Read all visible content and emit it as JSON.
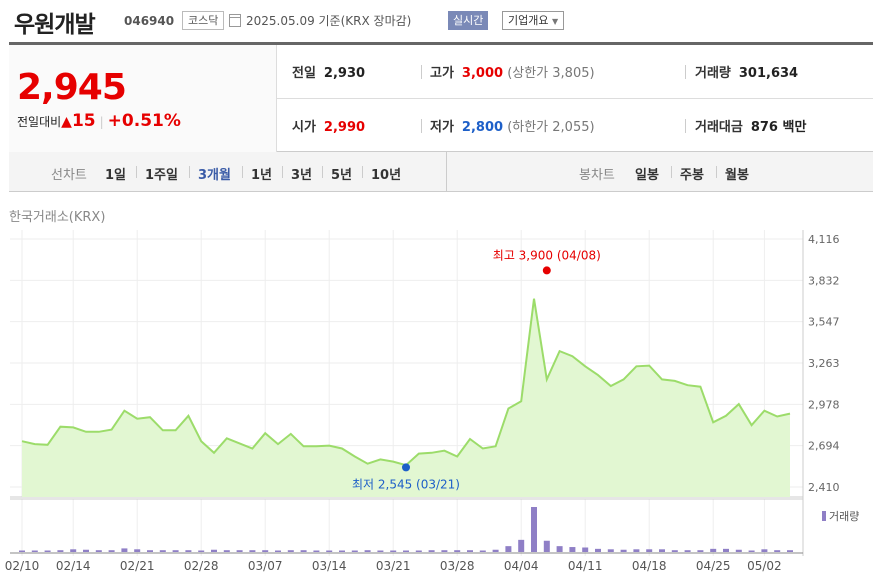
{
  "header": {
    "name": "우원개발",
    "code": "046940",
    "market": "코스닥",
    "date_text": "2025.05.09 기준(KRX 장마감)",
    "realtime": "실시간",
    "company_info": "기업개요"
  },
  "price": {
    "current": "2,945",
    "change_label": "전일대비",
    "change_amount": "15",
    "change_percent": "+0.51%"
  },
  "stats": {
    "prev_close": {
      "label": "전일",
      "value": "2,930"
    },
    "high": {
      "label": "고가",
      "value": "3,000",
      "limit": "(상한가 3,805)"
    },
    "volume": {
      "label": "거래량",
      "value": "301,634"
    },
    "open": {
      "label": "시가",
      "value": "2,990"
    },
    "low": {
      "label": "저가",
      "value": "2,800",
      "limit": "(하한가 2,055)"
    },
    "amount": {
      "label": "거래대금",
      "value": "876 백만"
    }
  },
  "tabs": {
    "line_label": "선차트",
    "periods": [
      "1일",
      "1주일",
      "3개월",
      "1년",
      "3년",
      "5년",
      "10년"
    ],
    "active": "3개월",
    "candle_label": "봉차트",
    "candles": [
      "일봉",
      "주봉",
      "월봉"
    ]
  },
  "exchange_label": "한국거래소(KRX)",
  "colors": {
    "up": "#e60000",
    "down": "#1d5fc8",
    "line": "#9cdc6a",
    "fill": "#e2f7d2",
    "volume": "#8f7fc6"
  },
  "chart_data": {
    "type": "area",
    "y_ticks": [
      "4,116",
      "3,832",
      "3,547",
      "3,263",
      "2,978",
      "2,694",
      "2,410"
    ],
    "ylim": [
      2410,
      4116
    ],
    "x_ticks": [
      "02/10",
      "02/14",
      "02/21",
      "02/28",
      "03/07",
      "03/14",
      "03/21",
      "03/28",
      "04/04",
      "04/11",
      "04/18",
      "04/25",
      "05/02"
    ],
    "x_tick_index": [
      0,
      4,
      9,
      14,
      19,
      24,
      29,
      34,
      39,
      44,
      49,
      54,
      58
    ],
    "prices": [
      2725,
      2705,
      2700,
      2825,
      2820,
      2790,
      2790,
      2805,
      2935,
      2880,
      2890,
      2800,
      2800,
      2900,
      2725,
      2645,
      2745,
      2710,
      2675,
      2780,
      2705,
      2775,
      2690,
      2690,
      2695,
      2675,
      2620,
      2570,
      2600,
      2585,
      2560,
      2640,
      2645,
      2660,
      2620,
      2740,
      2675,
      2690,
      2950,
      3000,
      3705,
      3150,
      3345,
      3310,
      3240,
      3180,
      3105,
      3150,
      3240,
      3245,
      3150,
      3140,
      3110,
      3100,
      2855,
      2900,
      2980,
      2835,
      2935,
      2895,
      2915
    ],
    "volume_relative": [
      0.03,
      0.03,
      0.03,
      0.04,
      0.06,
      0.05,
      0.04,
      0.04,
      0.08,
      0.06,
      0.04,
      0.04,
      0.04,
      0.04,
      0.03,
      0.05,
      0.04,
      0.04,
      0.04,
      0.04,
      0.03,
      0.04,
      0.04,
      0.03,
      0.03,
      0.03,
      0.03,
      0.04,
      0.03,
      0.03,
      0.03,
      0.03,
      0.04,
      0.04,
      0.04,
      0.04,
      0.03,
      0.05,
      0.13,
      0.27,
      1.0,
      0.25,
      0.13,
      0.11,
      0.1,
      0.07,
      0.06,
      0.05,
      0.06,
      0.06,
      0.06,
      0.04,
      0.04,
      0.04,
      0.07,
      0.07,
      0.05,
      0.03,
      0.06,
      0.04,
      0.04
    ],
    "max": {
      "label": "최고 3,900 (04/08)",
      "value": 3900,
      "index": 41
    },
    "min": {
      "label": "최저 2,545 (03/21)",
      "value": 2545,
      "index": 30
    },
    "volume_label": "거래량"
  }
}
